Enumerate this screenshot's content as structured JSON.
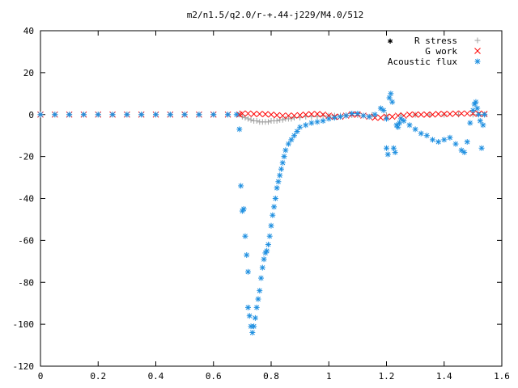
{
  "chart_data": {
    "type": "scatter",
    "title": "m2/n1.5/q2.0/r-+.44-j229/M4.0/512",
    "xlabel": "",
    "ylabel": "",
    "xlim": [
      0,
      1.6
    ],
    "ylim": [
      -120,
      40
    ],
    "x_ticks": [
      0,
      0.2,
      0.4,
      0.6,
      0.8,
      1.0,
      1.2,
      1.4,
      1.6
    ],
    "x_tick_labels": [
      "0",
      "0.2",
      "0.4",
      "0.6",
      "0.8",
      "1",
      "1.2",
      "1.4",
      "1.6"
    ],
    "y_ticks": [
      -120,
      -100,
      -80,
      -60,
      -40,
      -20,
      0,
      20,
      40
    ],
    "y_tick_labels": [
      "-120",
      "-100",
      "-80",
      "-60",
      "-40",
      "-20",
      "0",
      "20",
      "40"
    ],
    "grid": false,
    "legend_position": "top-right",
    "legend_marker_label": "✱",
    "series": [
      {
        "name": "R stress",
        "marker": "plus",
        "color": "#a0a0a0",
        "points": [
          [
            0.0,
            0
          ],
          [
            0.05,
            0
          ],
          [
            0.1,
            0
          ],
          [
            0.15,
            0
          ],
          [
            0.2,
            0
          ],
          [
            0.25,
            0
          ],
          [
            0.3,
            0
          ],
          [
            0.35,
            0
          ],
          [
            0.4,
            0
          ],
          [
            0.45,
            0
          ],
          [
            0.5,
            0
          ],
          [
            0.55,
            0
          ],
          [
            0.6,
            0
          ],
          [
            0.65,
            0
          ],
          [
            0.69,
            0
          ],
          [
            0.7,
            -1
          ],
          [
            0.71,
            -1.5
          ],
          [
            0.72,
            -2
          ],
          [
            0.73,
            -2.5
          ],
          [
            0.74,
            -3
          ],
          [
            0.75,
            -3
          ],
          [
            0.76,
            -3.5
          ],
          [
            0.77,
            -3.5
          ],
          [
            0.78,
            -3.5
          ],
          [
            0.79,
            -3.5
          ],
          [
            0.8,
            -3
          ],
          [
            0.81,
            -3
          ],
          [
            0.82,
            -3
          ],
          [
            0.83,
            -2.5
          ],
          [
            0.84,
            -2.5
          ],
          [
            0.85,
            -2
          ],
          [
            0.86,
            -2
          ],
          [
            0.87,
            -2
          ],
          [
            0.88,
            -1.5
          ],
          [
            0.9,
            -1.5
          ],
          [
            0.92,
            -1
          ],
          [
            0.94,
            -1
          ],
          [
            0.96,
            -1
          ],
          [
            0.98,
            -0.5
          ],
          [
            1.0,
            -0.5
          ],
          [
            1.02,
            -0.5
          ],
          [
            1.04,
            -0.5
          ],
          [
            1.06,
            -0.3
          ],
          [
            1.08,
            -0.3
          ],
          [
            1.1,
            -0.3
          ],
          [
            1.15,
            -0.2
          ],
          [
            1.2,
            -0.2
          ],
          [
            1.25,
            -0.2
          ],
          [
            1.3,
            -0.1
          ],
          [
            1.35,
            -0.1
          ],
          [
            1.4,
            -0.1
          ],
          [
            1.45,
            0
          ],
          [
            1.5,
            0
          ],
          [
            1.54,
            0
          ]
        ]
      },
      {
        "name": "G work",
        "marker": "cross",
        "color": "#ff0000",
        "points": [
          [
            0.0,
            0
          ],
          [
            0.05,
            0
          ],
          [
            0.1,
            0
          ],
          [
            0.15,
            0
          ],
          [
            0.2,
            0
          ],
          [
            0.25,
            0
          ],
          [
            0.3,
            0
          ],
          [
            0.35,
            0
          ],
          [
            0.4,
            0
          ],
          [
            0.45,
            0
          ],
          [
            0.5,
            0
          ],
          [
            0.55,
            0
          ],
          [
            0.6,
            0
          ],
          [
            0.65,
            0
          ],
          [
            0.69,
            0
          ],
          [
            0.7,
            0.5
          ],
          [
            0.72,
            0.5
          ],
          [
            0.74,
            0.3
          ],
          [
            0.76,
            0.3
          ],
          [
            0.78,
            0.2
          ],
          [
            0.8,
            0
          ],
          [
            0.82,
            -0.3
          ],
          [
            0.84,
            -0.5
          ],
          [
            0.86,
            -0.5
          ],
          [
            0.88,
            -0.5
          ],
          [
            0.9,
            -0.3
          ],
          [
            0.92,
            0
          ],
          [
            0.94,
            0.2
          ],
          [
            0.96,
            0.3
          ],
          [
            0.98,
            0
          ],
          [
            1.0,
            -0.5
          ],
          [
            1.02,
            -1
          ],
          [
            1.04,
            -1
          ],
          [
            1.06,
            -0.5
          ],
          [
            1.08,
            0
          ],
          [
            1.1,
            0
          ],
          [
            1.12,
            -0.5
          ],
          [
            1.14,
            -1
          ],
          [
            1.16,
            -1.5
          ],
          [
            1.18,
            -1.5
          ],
          [
            1.2,
            -1
          ],
          [
            1.22,
            -1
          ],
          [
            1.24,
            -0.5
          ],
          [
            1.26,
            -0.5
          ],
          [
            1.28,
            0
          ],
          [
            1.3,
            0
          ],
          [
            1.32,
            0
          ],
          [
            1.34,
            0
          ],
          [
            1.36,
            0
          ],
          [
            1.38,
            0.3
          ],
          [
            1.4,
            0.3
          ],
          [
            1.42,
            0.3
          ],
          [
            1.44,
            0.5
          ],
          [
            1.46,
            0.5
          ],
          [
            1.48,
            0.5
          ],
          [
            1.5,
            0.5
          ],
          [
            1.52,
            0.5
          ],
          [
            1.54,
            0.3
          ]
        ]
      },
      {
        "name": "Acoustic flux",
        "marker": "star",
        "color": "#1e8fe0",
        "points": [
          [
            0.0,
            0
          ],
          [
            0.05,
            0
          ],
          [
            0.1,
            0
          ],
          [
            0.15,
            0
          ],
          [
            0.2,
            0
          ],
          [
            0.25,
            0
          ],
          [
            0.3,
            0
          ],
          [
            0.35,
            0
          ],
          [
            0.4,
            0
          ],
          [
            0.45,
            0
          ],
          [
            0.5,
            0
          ],
          [
            0.55,
            0
          ],
          [
            0.6,
            0
          ],
          [
            0.65,
            0
          ],
          [
            0.68,
            0
          ],
          [
            0.69,
            -7
          ],
          [
            0.695,
            -34
          ],
          [
            0.7,
            -46
          ],
          [
            0.705,
            -45
          ],
          [
            0.71,
            -58
          ],
          [
            0.715,
            -67
          ],
          [
            0.72,
            -75
          ],
          [
            0.72,
            -92
          ],
          [
            0.725,
            -96
          ],
          [
            0.73,
            -101
          ],
          [
            0.735,
            -104
          ],
          [
            0.74,
            -101
          ],
          [
            0.745,
            -97
          ],
          [
            0.75,
            -92
          ],
          [
            0.755,
            -88
          ],
          [
            0.76,
            -84
          ],
          [
            0.765,
            -78
          ],
          [
            0.77,
            -73
          ],
          [
            0.775,
            -69
          ],
          [
            0.78,
            -66
          ],
          [
            0.785,
            -65
          ],
          [
            0.79,
            -62
          ],
          [
            0.795,
            -58
          ],
          [
            0.8,
            -53
          ],
          [
            0.805,
            -48
          ],
          [
            0.81,
            -44
          ],
          [
            0.815,
            -40
          ],
          [
            0.82,
            -35
          ],
          [
            0.825,
            -32
          ],
          [
            0.83,
            -29
          ],
          [
            0.835,
            -26
          ],
          [
            0.84,
            -23
          ],
          [
            0.845,
            -20
          ],
          [
            0.85,
            -17
          ],
          [
            0.86,
            -14
          ],
          [
            0.87,
            -12
          ],
          [
            0.88,
            -10
          ],
          [
            0.89,
            -8
          ],
          [
            0.9,
            -6
          ],
          [
            0.92,
            -5
          ],
          [
            0.94,
            -4
          ],
          [
            0.96,
            -3.5
          ],
          [
            0.98,
            -3
          ],
          [
            1.0,
            -2
          ],
          [
            1.02,
            -1.5
          ],
          [
            1.04,
            -1
          ],
          [
            1.06,
            -0.5
          ],
          [
            1.08,
            0.5
          ],
          [
            1.1,
            0.5
          ],
          [
            1.12,
            -0.5
          ],
          [
            1.14,
            -1
          ],
          [
            1.16,
            0
          ],
          [
            1.18,
            3
          ],
          [
            1.19,
            2
          ],
          [
            1.2,
            -2
          ],
          [
            1.2,
            -16
          ],
          [
            1.205,
            -19
          ],
          [
            1.21,
            8
          ],
          [
            1.215,
            10
          ],
          [
            1.22,
            6
          ],
          [
            1.225,
            -16
          ],
          [
            1.23,
            -18
          ],
          [
            1.235,
            -5
          ],
          [
            1.24,
            -6
          ],
          [
            1.245,
            -4
          ],
          [
            1.25,
            -2
          ],
          [
            1.26,
            -3
          ],
          [
            1.28,
            -5
          ],
          [
            1.3,
            -7
          ],
          [
            1.32,
            -9
          ],
          [
            1.34,
            -10
          ],
          [
            1.36,
            -12
          ],
          [
            1.38,
            -13
          ],
          [
            1.4,
            -12
          ],
          [
            1.42,
            -11
          ],
          [
            1.44,
            -14
          ],
          [
            1.46,
            -17
          ],
          [
            1.47,
            -18
          ],
          [
            1.48,
            -13
          ],
          [
            1.49,
            -4
          ],
          [
            1.5,
            2
          ],
          [
            1.505,
            5
          ],
          [
            1.51,
            6
          ],
          [
            1.515,
            3
          ],
          [
            1.52,
            0
          ],
          [
            1.525,
            -3
          ],
          [
            1.53,
            -16
          ],
          [
            1.535,
            -5
          ],
          [
            1.54,
            0
          ]
        ]
      }
    ]
  }
}
